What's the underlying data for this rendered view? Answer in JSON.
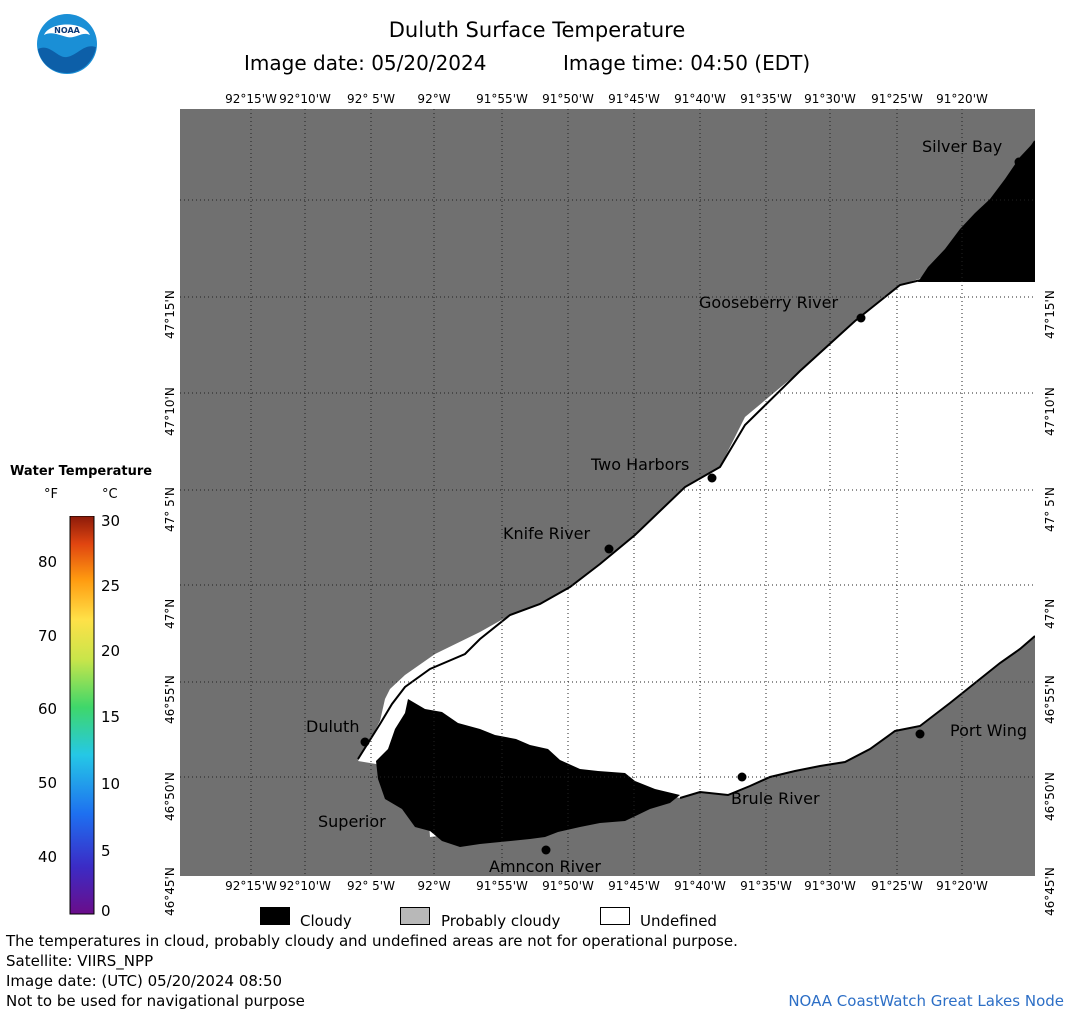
{
  "header": {
    "title": "Duluth Surface Temperature",
    "image_date": "Image date: 05/20/2024",
    "image_time": "Image time: 04:50 (EDT)"
  },
  "logo": {
    "text": "NOAA",
    "icon": "noaa-logo-icon"
  },
  "colors": {
    "land": "#707070",
    "cloudy": "#000000",
    "probably_cloudy": "#b8b8b8",
    "undefined": "#ffffff",
    "credit": "#2d6fc6"
  },
  "map": {
    "lon_labels": [
      "92°15'W",
      "92°10'W",
      "92° 5'W",
      "92°W",
      "91°55'W",
      "91°50'W",
      "91°45'W",
      "91°40'W",
      "91°35'W",
      "91°30'W",
      "91°25'W",
      "91°20'W"
    ],
    "lat_labels": [
      "47°15'N",
      "47°10'N",
      "47° 5'N",
      "47°N",
      "46°55'N",
      "46°50'N",
      "46°45'N"
    ],
    "places": [
      {
        "name": "Silver Bay"
      },
      {
        "name": "Gooseberry River"
      },
      {
        "name": "Two Harbors"
      },
      {
        "name": "Knife River"
      },
      {
        "name": "Duluth"
      },
      {
        "name": "Superior"
      },
      {
        "name": "Amncon River"
      },
      {
        "name": "Brule River"
      },
      {
        "name": "Port Wing"
      }
    ]
  },
  "legend": {
    "title": "Water Temperature",
    "unit_f": "°F",
    "unit_c": "°C",
    "ticks_f": [
      "80",
      "70",
      "60",
      "50",
      "40"
    ],
    "ticks_c": [
      "30",
      "25",
      "20",
      "15",
      "10",
      "5",
      "0"
    ]
  },
  "key": {
    "cloudy": "Cloudy",
    "probably_cloudy": "Probably cloudy",
    "undefined": "Undefined"
  },
  "footer": {
    "note": "The temperatures in cloud, probably cloudy and undefined areas are not for operational purpose.",
    "satellite": "Satellite: VIIRS_NPP",
    "utc_date": "Image date: (UTC) 05/20/2024  08:50",
    "nav_warning": "Not to be used for navigational purpose",
    "credit": "NOAA CoastWatch Great Lakes Node"
  }
}
